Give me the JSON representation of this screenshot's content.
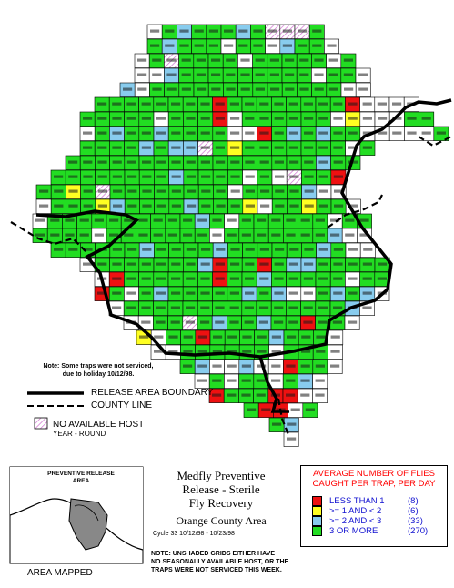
{
  "map": {
    "legend_lines": {
      "boundary_label": "RELEASE AREA BOUNDARY",
      "county_label": "COUNTY LINE",
      "nohost_label": "NO AVAILABLE HOST",
      "nohost_sublabel": "YEAR - ROUND"
    },
    "note_top": {
      "line1": "Note: Some traps were not serviced,",
      "line2": "due to holiday 10/12/98."
    },
    "note_bottom": {
      "line1": "NOTE: UNSHADED GRIDS EITHER HAVE",
      "line2": "NO SEASONALLY AVAILABLE HOST, OR THE",
      "line3": "TRAPS WERE NOT SERVICED THIS WEEK."
    },
    "inset": {
      "title_line1": "PREVENTIVE RELEASE",
      "title_line2": "AREA",
      "caption": "AREA MAPPED"
    },
    "title": {
      "line1": "Medfly Preventive",
      "line2": "Release - Sterile",
      "line3": "Fly Recovery",
      "area": "Orange County Area",
      "cycle": "Cycle 33   10/12/98 - 10/23/98"
    },
    "stats": {
      "title_line1": "AVERAGE NUMBER OF FLIES",
      "title_line2": "CAUGHT PER TRAP, PER DAY",
      "rows": [
        {
          "label": "LESS THAN 1",
          "count": "(8)",
          "color": "#ee1111"
        },
        {
          "label": ">= 1 AND < 2",
          "count": "(6)",
          "color": "#ffff22"
        },
        {
          "label": ">= 2 AND < 3",
          "count": "(33)",
          "color": "#88ccee"
        },
        {
          "label": "3 OR MORE",
          "count": "(270)",
          "color": "#22dd22"
        }
      ]
    },
    "colors": {
      "green": "#22dd22",
      "blue": "#88ccee",
      "yellow": "#ffff22",
      "red": "#ee1111",
      "hatch": "#cc66cc",
      "white": "#ffffff"
    }
  }
}
